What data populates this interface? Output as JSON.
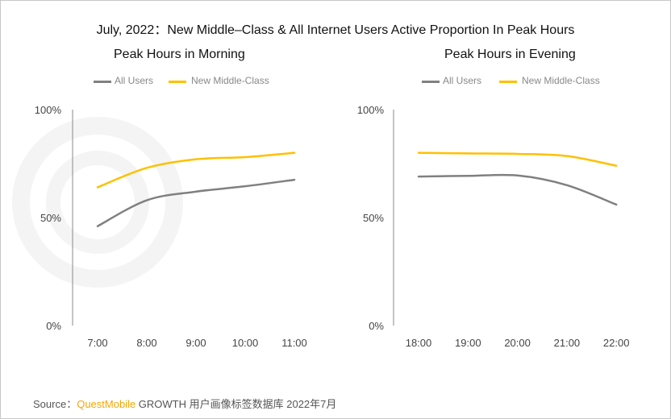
{
  "title": "July, 2022：New Middle–Class & All Internet Users Active Proportion In Peak Hours",
  "source": {
    "label": "Source：",
    "brand": "QuestMobile",
    "text": " GROWTH 用户画像标签数据库 2022年7月"
  },
  "watermark": "QUEST MOBILE",
  "colors": {
    "all_users": "#808080",
    "new_middle_class": "#ffc000"
  },
  "chart_data": [
    {
      "type": "line",
      "title": "Peak Hours in Morning",
      "categories": [
        "7:00",
        "8:00",
        "9:00",
        "10:00",
        "11:00"
      ],
      "yticks": [
        "0%",
        "50%",
        "100%"
      ],
      "ylim": [
        0,
        100
      ],
      "legend": "top",
      "series": [
        {
          "name": "All Users",
          "values": [
            46,
            58,
            62,
            64.5,
            67.5
          ]
        },
        {
          "name": "New Middle-Class",
          "values": [
            64,
            73,
            77,
            78,
            80
          ]
        }
      ]
    },
    {
      "type": "line",
      "title": "Peak Hours in Evening",
      "categories": [
        "18:00",
        "19:00",
        "20:00",
        "21:00",
        "22:00"
      ],
      "yticks": [
        "0%",
        "50%",
        "100%"
      ],
      "ylim": [
        0,
        100
      ],
      "legend": "top",
      "series": [
        {
          "name": "All Users",
          "values": [
            69,
            69.3,
            69.5,
            65,
            56
          ]
        },
        {
          "name": "New Middle-Class",
          "values": [
            80,
            79.7,
            79.5,
            78.5,
            74
          ]
        }
      ]
    }
  ]
}
